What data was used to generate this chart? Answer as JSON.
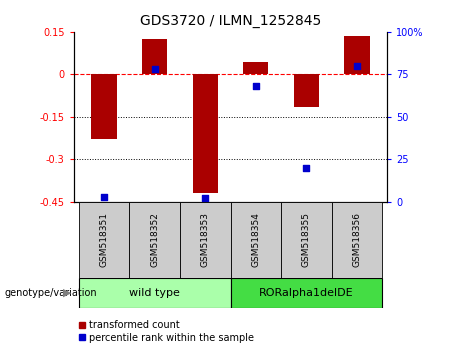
{
  "title": "GDS3720 / ILMN_1252845",
  "categories": [
    "GSM518351",
    "GSM518352",
    "GSM518353",
    "GSM518354",
    "GSM518355",
    "GSM518356"
  ],
  "red_values": [
    -0.23,
    0.125,
    -0.42,
    0.045,
    -0.115,
    0.135
  ],
  "blue_values_pct": [
    3,
    78,
    2,
    68,
    20,
    80
  ],
  "ylim_left": [
    -0.45,
    0.15
  ],
  "ylim_right": [
    0,
    100
  ],
  "left_ticks": [
    0.15,
    0,
    -0.15,
    -0.3,
    -0.45
  ],
  "right_ticks": [
    100,
    75,
    50,
    25,
    0
  ],
  "hlines_dotted": [
    -0.15,
    -0.3
  ],
  "group1_label": "wild type",
  "group2_label": "RORalpha1delDE",
  "group1_indices": [
    0,
    1,
    2
  ],
  "group2_indices": [
    3,
    4,
    5
  ],
  "legend_red": "transformed count",
  "legend_blue": "percentile rank within the sample",
  "genotype_label": "genotype/variation",
  "bar_color": "#aa0000",
  "blue_color": "#0000cc",
  "group1_color": "#aaffaa",
  "group2_color": "#44dd44",
  "label_bg_color": "#cccccc",
  "background_color": "#ffffff",
  "bar_width": 0.5
}
